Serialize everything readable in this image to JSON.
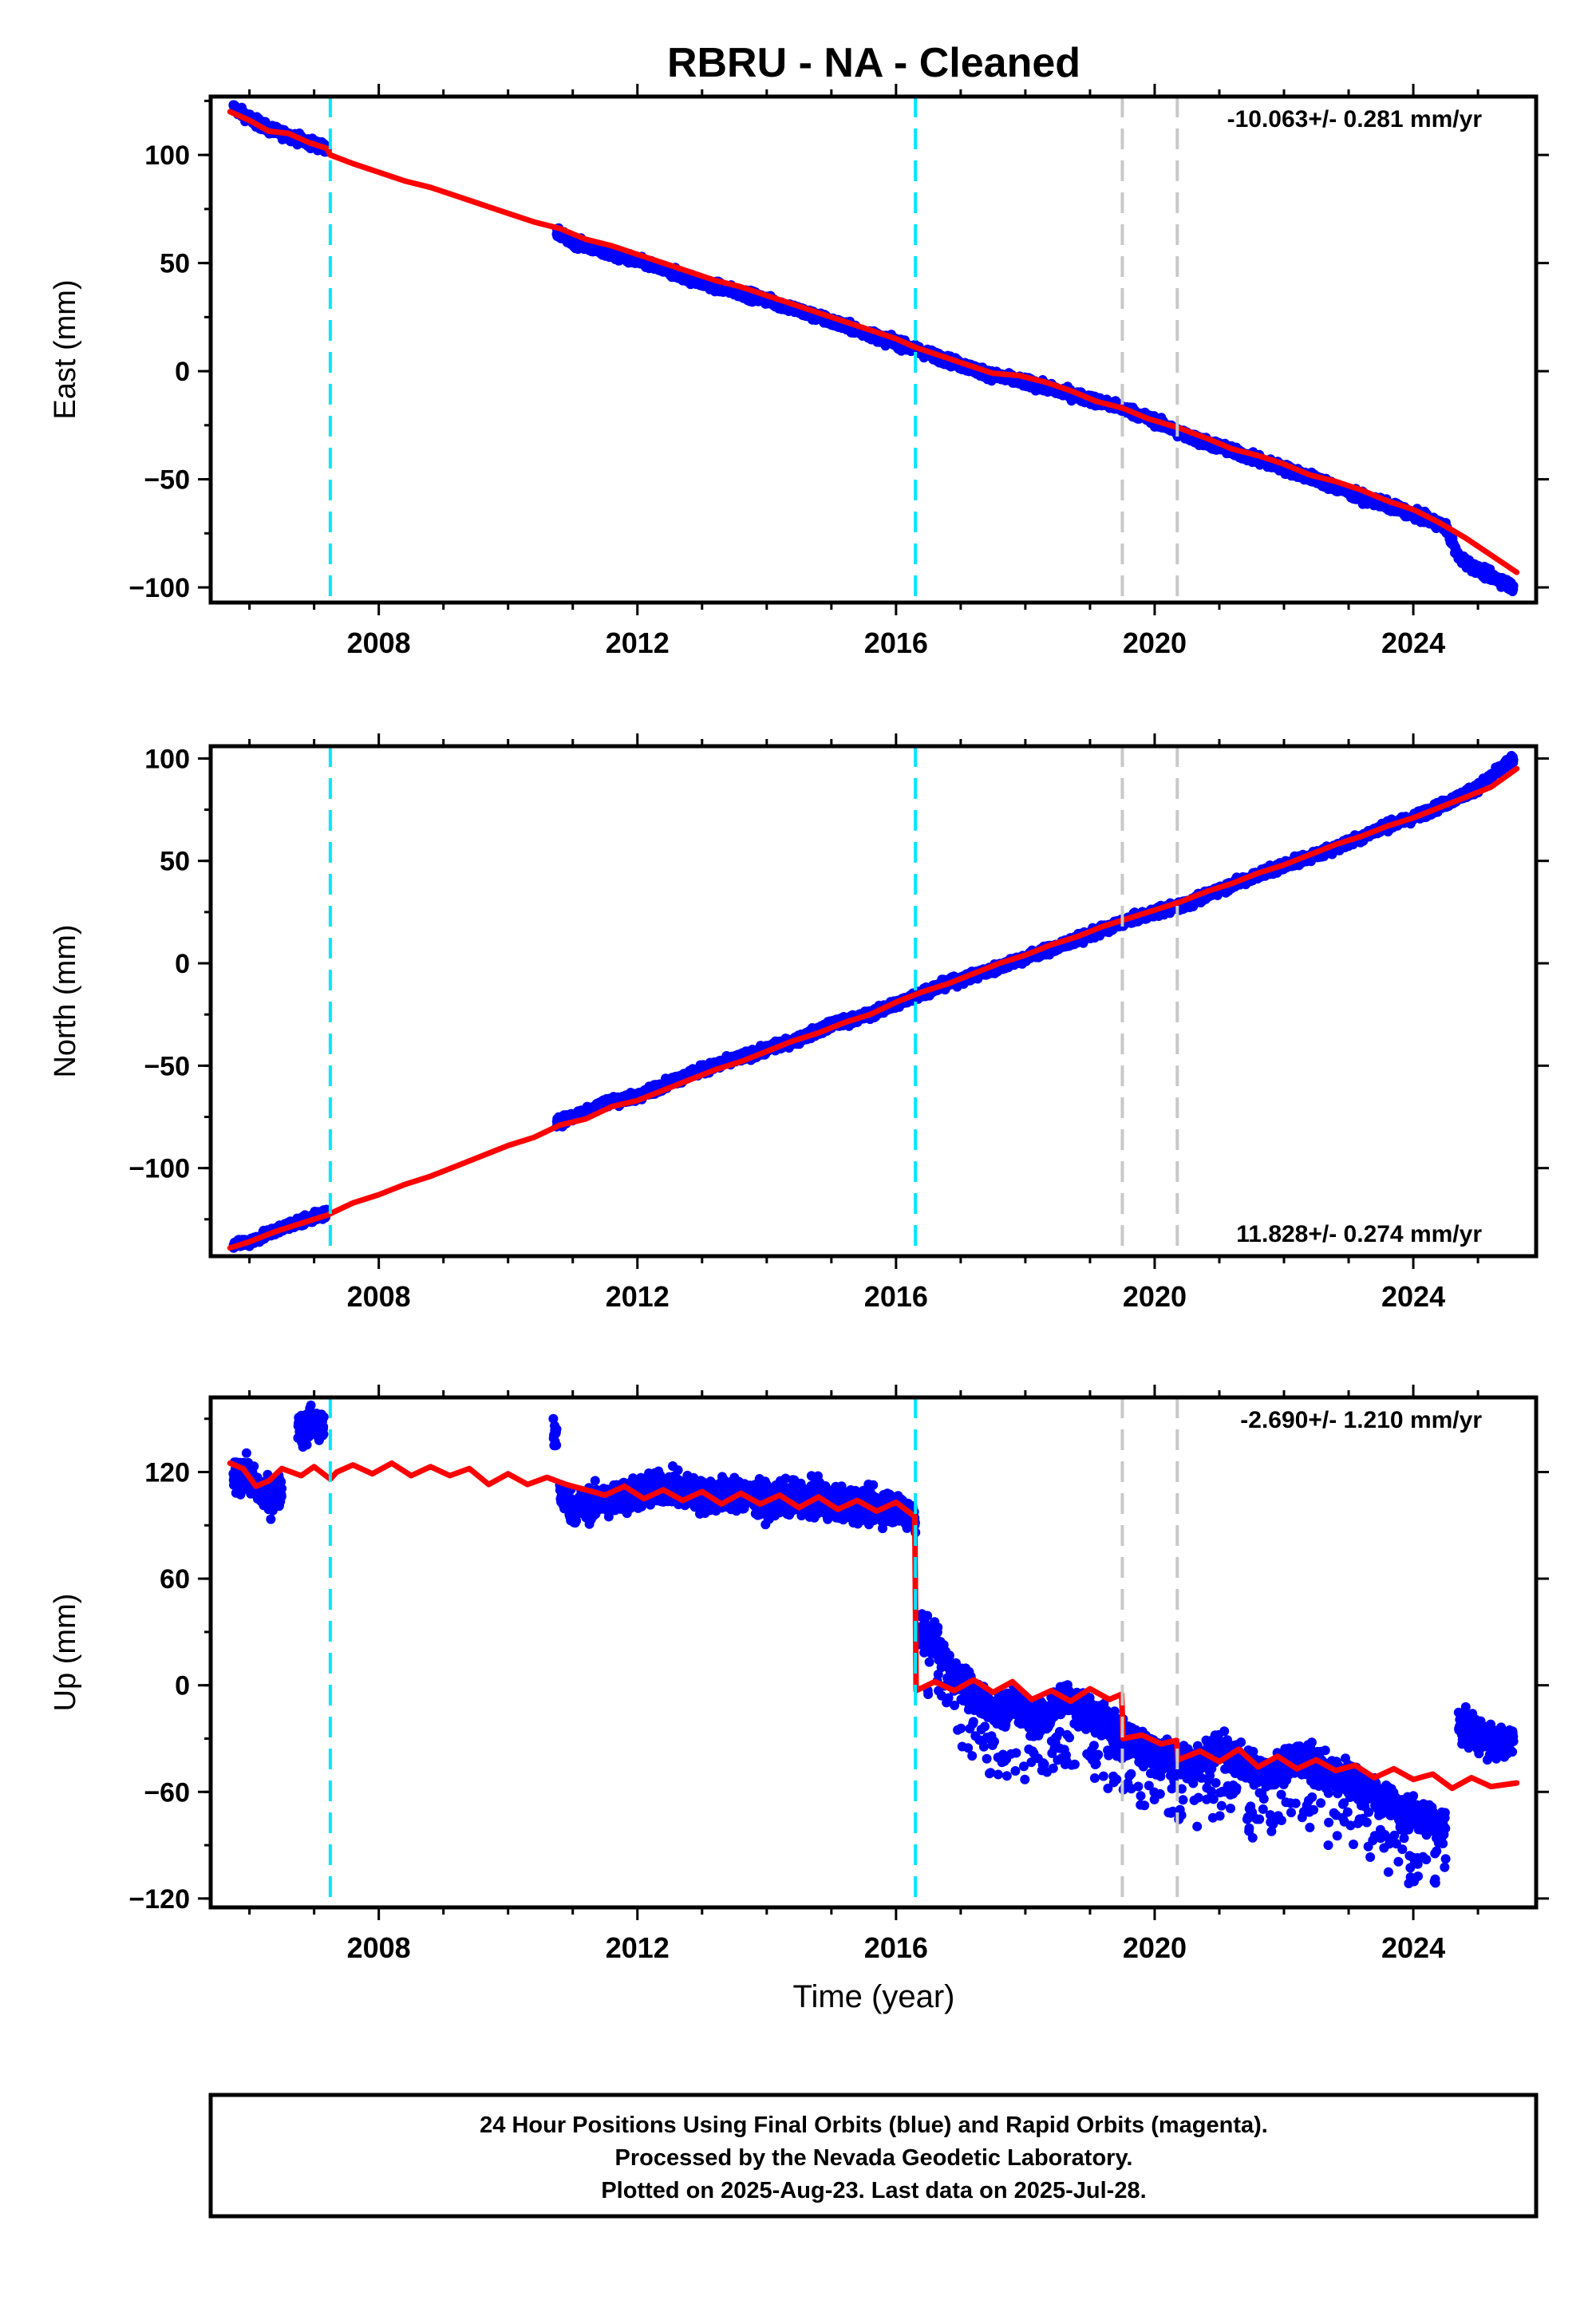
{
  "title": "RBRU  - NA - Cleaned",
  "xlabel": "Time (year)",
  "colors": {
    "data": "#0000ff",
    "model": "#ff0000",
    "offset_equipment": "#00e5ff",
    "offset_other": "#c8c8c8"
  },
  "footer": {
    "line1": "24 Hour Positions Using Final Orbits (blue) and Rapid Orbits (magenta).",
    "line2": "Processed by the Nevada Geodetic Laboratory.",
    "line3": "Plotted on 2025-Aug-23. Last data on 2025-Jul-28."
  },
  "chart_data": [
    {
      "type": "scatter",
      "id": "east",
      "ylabel": "East (mm)",
      "rate_label": "-10.063+/- 0.281 mm/yr",
      "rate_position": "top-right",
      "xlim": [
        2005.4,
        2025.9
      ],
      "ylim": [
        -107,
        127
      ],
      "xticks": [
        2008,
        2012,
        2016,
        2020,
        2024
      ],
      "yticks": [
        100,
        50,
        0,
        -50,
        -100
      ],
      "yticklabels": [
        "100",
        "50",
        "0",
        "−50",
        "−100"
      ],
      "offsets_cyan": [
        2007.25,
        2016.3
      ],
      "offsets_gray": [
        2019.5,
        2020.35
      ],
      "data_segments": [
        {
          "x": [
            2005.75,
            2006.0,
            2006.3,
            2006.6,
            2006.9,
            2007.2
          ],
          "y": [
            122,
            117,
            112,
            109,
            106,
            103
          ]
        },
        {
          "x": [
            2010.75,
            2011.0,
            2011.5,
            2012.0,
            2012.5,
            2013.0,
            2013.5,
            2014.0,
            2014.5,
            2015.0,
            2015.5,
            2016.0,
            2016.5,
            2017.0,
            2017.5,
            2018.0,
            2018.5,
            2019.0,
            2019.5,
            2020.0,
            2020.5,
            2021.0,
            2021.5,
            2022.0,
            2022.5,
            2023.0,
            2023.5,
            2024.0,
            2024.5,
            2024.7,
            2025.0,
            2025.3,
            2025.55
          ],
          "y": [
            64,
            60,
            55,
            51,
            46,
            41,
            37,
            33,
            28,
            23,
            18,
            13,
            8,
            3,
            -2,
            -5,
            -9,
            -13,
            -17,
            -23,
            -30,
            -35,
            -40,
            -45,
            -50,
            -56,
            -61,
            -66,
            -72,
            -86,
            -92,
            -96,
            -100
          ]
        }
      ],
      "model": {
        "x": [
          2005.7,
          2006.0,
          2006.3,
          2006.6,
          2006.9,
          2007.2,
          2007.25,
          2007.6,
          2008.0,
          2008.4,
          2008.8,
          2009.2,
          2009.6,
          2010.0,
          2010.4,
          2010.8,
          2011.2,
          2011.6,
          2012.0,
          2012.4,
          2012.8,
          2013.2,
          2013.6,
          2014.0,
          2014.4,
          2014.8,
          2015.2,
          2015.6,
          2016.0,
          2016.3,
          2016.7,
          2017.1,
          2017.5,
          2017.9,
          2018.3,
          2018.7,
          2019.1,
          2019.5,
          2019.9,
          2020.35,
          2020.8,
          2021.2,
          2021.6,
          2022.0,
          2022.4,
          2022.8,
          2023.2,
          2023.6,
          2024.0,
          2024.4,
          2024.8,
          2025.2,
          2025.6
        ],
        "y": [
          120,
          116,
          111,
          110,
          106,
          103,
          100,
          96,
          92,
          88,
          85,
          81,
          77,
          73,
          69,
          66,
          61,
          58,
          54,
          50,
          46,
          42,
          39,
          35,
          31,
          27,
          23,
          19,
          15,
          11,
          7,
          3,
          -1,
          -2,
          -5,
          -9,
          -14,
          -17,
          -22,
          -26,
          -31,
          -36,
          -39,
          -43,
          -48,
          -51,
          -55,
          -60,
          -64,
          -70,
          -77,
          -85,
          -93
        ]
      }
    },
    {
      "type": "scatter",
      "id": "north",
      "ylabel": "North (mm)",
      "rate_label": "11.828+/- 0.274 mm/yr",
      "rate_position": "bottom-right",
      "xlim": [
        2005.4,
        2025.9
      ],
      "ylim": [
        -143,
        106
      ],
      "xticks": [
        2008,
        2012,
        2016,
        2020,
        2024
      ],
      "yticks": [
        100,
        50,
        0,
        -50,
        -100
      ],
      "yticklabels": [
        "100",
        "50",
        "0",
        "−50",
        "−100"
      ],
      "offsets_cyan": [
        2007.25,
        2016.3
      ],
      "offsets_gray": [
        2019.5,
        2020.35
      ],
      "data_segments": [
        {
          "x": [
            2005.75,
            2006.0,
            2006.3,
            2006.6,
            2006.9,
            2007.2
          ],
          "y": [
            -137,
            -136,
            -132,
            -128,
            -125,
            -122
          ]
        },
        {
          "x": [
            2010.75,
            2011.0,
            2011.5,
            2012.0,
            2012.5,
            2013.0,
            2013.5,
            2014.0,
            2014.5,
            2015.0,
            2015.5,
            2016.0,
            2016.5,
            2017.0,
            2017.5,
            2018.0,
            2018.5,
            2019.0,
            2019.5,
            2020.0,
            2020.5,
            2021.0,
            2021.5,
            2022.0,
            2022.5,
            2023.0,
            2023.5,
            2024.0,
            2024.5,
            2025.0,
            2025.55
          ],
          "y": [
            -78,
            -75,
            -68,
            -65,
            -58,
            -52,
            -47,
            -42,
            -37,
            -30,
            -26,
            -20,
            -13,
            -8,
            -3,
            3,
            8,
            14,
            20,
            25,
            29,
            36,
            42,
            48,
            53,
            59,
            66,
            71,
            78,
            86,
            100
          ]
        }
      ],
      "model": {
        "x": [
          2005.7,
          2006.0,
          2006.4,
          2006.8,
          2007.2,
          2007.6,
          2008.0,
          2008.4,
          2008.8,
          2009.2,
          2009.6,
          2010.0,
          2010.4,
          2010.8,
          2011.2,
          2011.6,
          2012.0,
          2012.4,
          2012.8,
          2013.2,
          2013.6,
          2014.0,
          2014.4,
          2014.8,
          2015.2,
          2015.6,
          2016.0,
          2016.4,
          2016.8,
          2017.2,
          2017.6,
          2018.0,
          2018.4,
          2018.8,
          2019.2,
          2019.6,
          2020.0,
          2020.4,
          2020.8,
          2021.2,
          2021.6,
          2022.0,
          2022.4,
          2022.8,
          2023.2,
          2023.6,
          2024.0,
          2024.4,
          2024.8,
          2025.2,
          2025.6
        ],
        "y": [
          -139,
          -136,
          -131,
          -127,
          -123,
          -117,
          -113,
          -108,
          -104,
          -99,
          -94,
          -89,
          -85,
          -79,
          -76,
          -70,
          -67,
          -62,
          -57,
          -52,
          -48,
          -43,
          -38,
          -34,
          -29,
          -25,
          -19,
          -14,
          -10,
          -5,
          0,
          4,
          9,
          13,
          18,
          22,
          26,
          30,
          35,
          39,
          44,
          48,
          53,
          58,
          62,
          67,
          71,
          76,
          81,
          86,
          95
        ]
      }
    },
    {
      "type": "scatter",
      "id": "up",
      "ylabel": "Up (mm)",
      "rate_label": "-2.690+/- 1.210 mm/yr",
      "rate_position": "top-right",
      "xlim": [
        2005.4,
        2025.9
      ],
      "ylim": [
        -125,
        162
      ],
      "xticks": [
        2008,
        2012,
        2016,
        2020,
        2024
      ],
      "yticks": [
        120,
        60,
        0,
        -60,
        -120
      ],
      "yticklabels": [
        "120",
        "60",
        "0",
        "−60",
        "−120"
      ],
      "offsets_cyan": [
        2007.25,
        2016.3
      ],
      "offsets_gray": [
        2019.5,
        2020.35
      ],
      "data_segments": [
        {
          "x": [
            2005.75,
            2005.9,
            2006.1,
            2006.3,
            2006.5
          ],
          "y": [
            115,
            120,
            112,
            105,
            110
          ]
        },
        {
          "x": [
            2006.75,
            2006.85,
            2006.95,
            2007.05,
            2007.15
          ],
          "y": [
            148,
            142,
            150,
            144,
            147
          ]
        },
        {
          "x": [
            2010.7,
            2010.75
          ],
          "y": [
            140,
            138
          ]
        },
        {
          "x": [
            2010.8,
            2011.0,
            2011.5,
            2012.0,
            2012.5,
            2013.0,
            2013.5,
            2014.0,
            2014.5,
            2015.0,
            2015.5,
            2016.0,
            2016.3
          ],
          "y": [
            110,
            100,
            104,
            108,
            112,
            106,
            108,
            104,
            106,
            103,
            101,
            100,
            95
          ]
        },
        {
          "x": [
            2016.35,
            2016.6,
            2016.9,
            2017.2,
            2017.5,
            2017.8,
            2018.2,
            2018.6,
            2019.0,
            2019.4,
            2019.8,
            2020.2,
            2020.6,
            2021.0,
            2021.4,
            2021.8,
            2022.2,
            2022.6,
            2023.0,
            2023.4,
            2023.8,
            2024.2,
            2024.5
          ],
          "y": [
            30,
            28,
            5,
            -5,
            -15,
            -10,
            -20,
            -8,
            -15,
            -25,
            -35,
            -40,
            -45,
            -35,
            -45,
            -50,
            -40,
            -48,
            -55,
            -60,
            -70,
            -75,
            -80
          ]
        },
        {
          "x": [
            2024.7,
            2024.9,
            2025.1,
            2025.3,
            2025.55
          ],
          "y": [
            -22,
            -25,
            -30,
            -33,
            -30
          ]
        }
      ],
      "model": {
        "x": [
          2005.7,
          2005.9,
          2006.1,
          2006.3,
          2006.5,
          2006.8,
          2007.0,
          2007.25,
          2007.35,
          2007.6,
          2007.9,
          2008.2,
          2008.5,
          2008.8,
          2009.1,
          2009.4,
          2009.7,
          2010.0,
          2010.3,
          2010.6,
          2010.9,
          2011.2,
          2011.5,
          2011.8,
          2012.1,
          2012.4,
          2012.7,
          2013.0,
          2013.3,
          2013.6,
          2013.9,
          2014.2,
          2014.5,
          2014.8,
          2015.1,
          2015.4,
          2015.7,
          2016.0,
          2016.29,
          2016.31,
          2016.6,
          2016.9,
          2017.2,
          2017.5,
          2017.8,
          2018.1,
          2018.4,
          2018.7,
          2019.0,
          2019.3,
          2019.49,
          2019.51,
          2019.8,
          2020.1,
          2020.34,
          2020.36,
          2020.7,
          2021.0,
          2021.3,
          2021.6,
          2021.9,
          2022.2,
          2022.5,
          2022.8,
          2023.1,
          2023.4,
          2023.7,
          2024.0,
          2024.3,
          2024.6,
          2024.9,
          2025.2,
          2025.6
        ],
        "y": [
          125,
          122,
          112,
          115,
          122,
          118,
          123,
          116,
          120,
          124,
          119,
          125,
          118,
          123,
          118,
          122,
          113,
          119,
          113,
          117,
          113,
          110,
          107,
          112,
          105,
          110,
          104,
          109,
          102,
          108,
          102,
          107,
          100,
          106,
          99,
          104,
          98,
          103,
          95,
          -3,
          2,
          -3,
          3,
          -4,
          2,
          -8,
          -3,
          -9,
          -2,
          -8,
          -5,
          -30,
          -28,
          -33,
          -31,
          -42,
          -37,
          -43,
          -36,
          -46,
          -40,
          -47,
          -42,
          -48,
          -45,
          -52,
          -47,
          -53,
          -50,
          -58,
          -52,
          -57,
          -55
        ]
      }
    }
  ]
}
